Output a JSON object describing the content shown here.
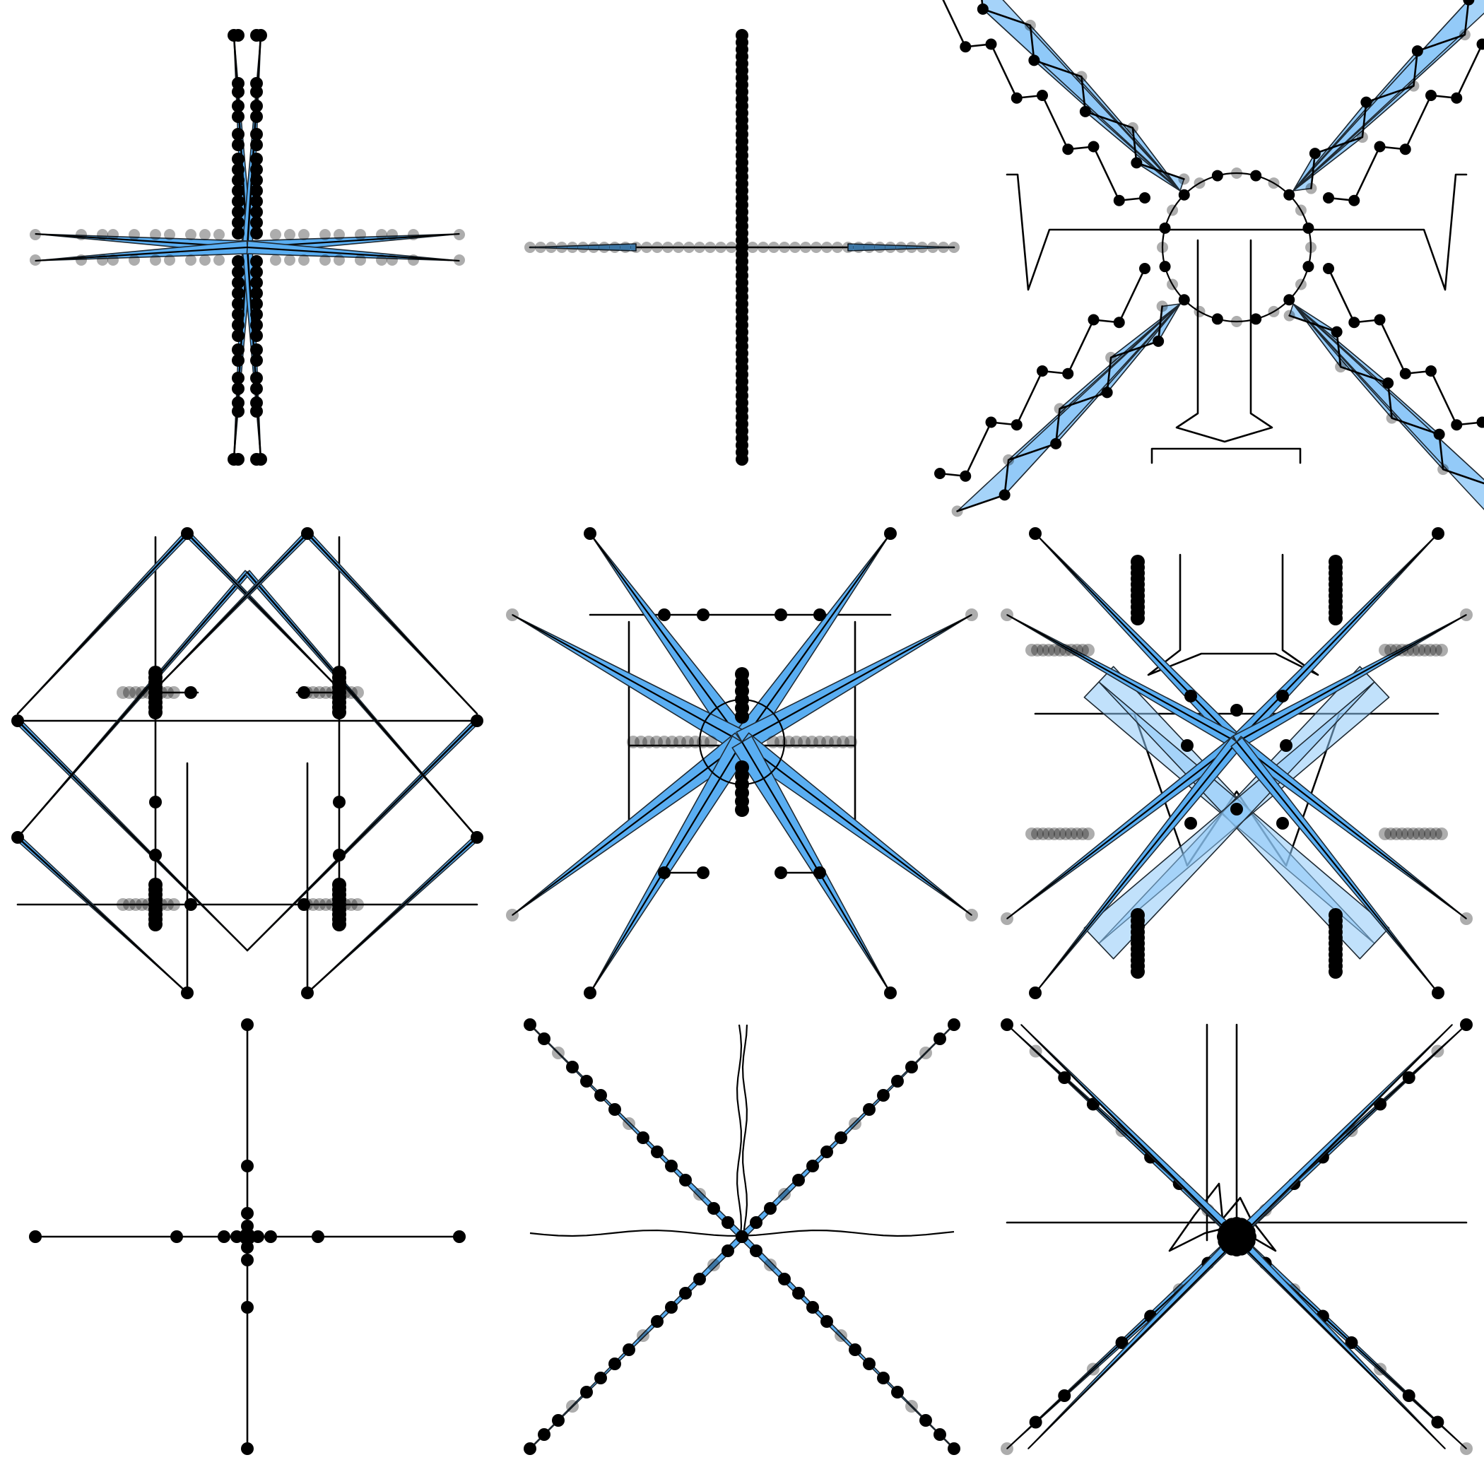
{
  "figure": {
    "rows": 3,
    "cols": 3,
    "colors": {
      "background": "#ffffff",
      "ink": "#000000",
      "wedge_fill": "#5aaef2",
      "wedge_fill_light": "#8ec8f7"
    },
    "panels": [
      {
        "id": "panel-1",
        "motif": "plus-with-pinched-blue-spokes"
      },
      {
        "id": "panel-2",
        "motif": "plus-with-dense-dot-chains"
      },
      {
        "id": "panel-3",
        "motif": "x-with-zigzag-blue-arms-and-ring"
      },
      {
        "id": "panel-4",
        "motif": "square-lattice-of-crossing-lines"
      },
      {
        "id": "panel-5",
        "motif": "eight-blue-needle-spokes"
      },
      {
        "id": "panel-6",
        "motif": "x-with-pale-blue-bands-and-frame"
      },
      {
        "id": "panel-7",
        "motif": "plain-plus-with-dots"
      },
      {
        "id": "panel-8",
        "motif": "x-of-dot-chains-with-wavy-axes"
      },
      {
        "id": "panel-9",
        "motif": "x-of-dot-chains-with-star-core"
      }
    ]
  }
}
